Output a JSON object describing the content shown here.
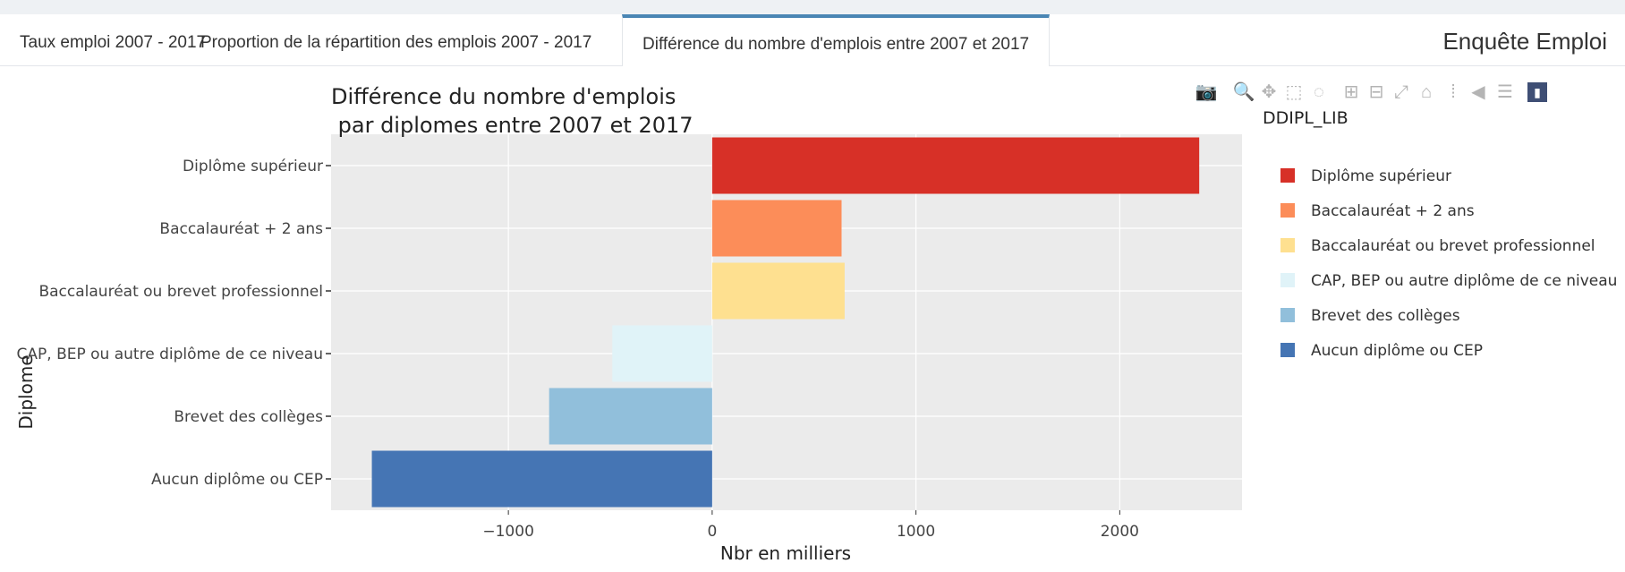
{
  "app": {
    "title": "Enquête Emploi"
  },
  "tabs": [
    {
      "label": "Taux emploi 2007 - 2017",
      "active": false
    },
    {
      "label": "Proportion de la répartition des emplois 2007 - 2017",
      "active": false
    },
    {
      "label": "Différence du nombre d'emplois entre 2007 et 2017",
      "active": true
    }
  ],
  "modebar": [
    {
      "name": "camera-icon",
      "glyph": "📷",
      "active": false
    },
    {
      "name": "zoom-icon",
      "glyph": "🔍",
      "active": true
    },
    {
      "name": "pan-icon",
      "glyph": "✥",
      "active": false
    },
    {
      "name": "box-select-icon",
      "glyph": "⬚",
      "active": false
    },
    {
      "name": "lasso-icon",
      "glyph": "◌",
      "active": false
    },
    {
      "name": "zoom-in-icon",
      "glyph": "⊞",
      "active": false
    },
    {
      "name": "zoom-out-icon",
      "glyph": "⊟",
      "active": false
    },
    {
      "name": "autoscale-icon",
      "glyph": "⤢",
      "active": false
    },
    {
      "name": "home-icon",
      "glyph": "⌂",
      "active": false
    },
    {
      "name": "spike-lines-icon",
      "glyph": "⁞",
      "active": false
    },
    {
      "name": "hover-closest-icon",
      "glyph": "◀",
      "active": false
    },
    {
      "name": "hover-compare-icon",
      "glyph": "☰",
      "active": false
    },
    {
      "name": "plotly-logo-icon",
      "glyph": "▮",
      "active": false
    }
  ],
  "chart_data": {
    "type": "bar",
    "orientation": "horizontal",
    "title_lines": [
      "Différence du nombre d'emplois",
      " par diplomes entre 2007 et 2017"
    ],
    "xlabel": "Nbr en milliers",
    "ylabel": "Diplome",
    "xlim": [
      -1870,
      2600
    ],
    "xticks": [
      -1000,
      0,
      1000,
      2000
    ],
    "xtick_labels": [
      "−1000",
      "0",
      "1000",
      "2000"
    ],
    "grid": true,
    "legend": {
      "title": "DDIPL_LIB",
      "placement": "right"
    },
    "categories": [
      "Diplôme supérieur",
      "Baccalauréat + 2 ans",
      "Baccalauréat ou brevet professionnel",
      "CAP, BEP ou autre diplôme de ce niveau",
      "Brevet des collèges",
      "Aucun diplôme ou CEP"
    ],
    "values": [
      2390,
      635,
      650,
      -490,
      -800,
      -1670
    ],
    "colors": [
      "#d73027",
      "#fc8d59",
      "#fee090",
      "#e0f3f8",
      "#91bfdb",
      "#4575b4"
    ],
    "background": "#ebebeb"
  }
}
